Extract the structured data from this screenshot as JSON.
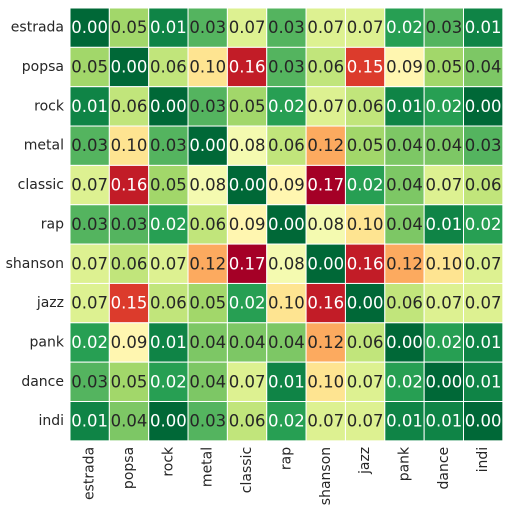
{
  "chart_data": {
    "type": "heatmap",
    "title": "",
    "xlabel": "",
    "ylabel": "",
    "categories": [
      "estrada",
      "popsa",
      "rock",
      "metal",
      "classic",
      "rap",
      "shanson",
      "jazz",
      "pank",
      "dance",
      "indi"
    ],
    "value_range": [
      0.0,
      0.17
    ],
    "colormap": "RdYlGn reversed (low = dark green, high = dark red)",
    "grid": "white cell borders",
    "colorbar": false,
    "matrix": [
      [
        0.0,
        0.05,
        0.01,
        0.03,
        0.07,
        0.03,
        0.07,
        0.07,
        0.02,
        0.03,
        0.01
      ],
      [
        0.05,
        0.0,
        0.06,
        0.1,
        0.16,
        0.03,
        0.06,
        0.15,
        0.09,
        0.05,
        0.04
      ],
      [
        0.01,
        0.06,
        0.0,
        0.03,
        0.05,
        0.02,
        0.07,
        0.06,
        0.01,
        0.02,
        0.0
      ],
      [
        0.03,
        0.1,
        0.03,
        0.0,
        0.08,
        0.06,
        0.12,
        0.05,
        0.04,
        0.04,
        0.03
      ],
      [
        0.07,
        0.16,
        0.05,
        0.08,
        0.0,
        0.09,
        0.17,
        0.02,
        0.04,
        0.07,
        0.06
      ],
      [
        0.03,
        0.03,
        0.02,
        0.06,
        0.09,
        0.0,
        0.08,
        0.1,
        0.04,
        0.01,
        0.02
      ],
      [
        0.07,
        0.06,
        0.07,
        0.12,
        0.17,
        0.08,
        0.0,
        0.16,
        0.12,
        0.1,
        0.07
      ],
      [
        0.07,
        0.15,
        0.06,
        0.05,
        0.02,
        0.1,
        0.16,
        0.0,
        0.06,
        0.07,
        0.07
      ],
      [
        0.02,
        0.09,
        0.01,
        0.04,
        0.04,
        0.04,
        0.12,
        0.06,
        0.0,
        0.02,
        0.01
      ],
      [
        0.03,
        0.05,
        0.02,
        0.04,
        0.07,
        0.01,
        0.1,
        0.07,
        0.02,
        0.0,
        0.01
      ],
      [
        0.01,
        0.04,
        0.0,
        0.03,
        0.06,
        0.02,
        0.07,
        0.07,
        0.01,
        0.01,
        0.0
      ]
    ]
  }
}
